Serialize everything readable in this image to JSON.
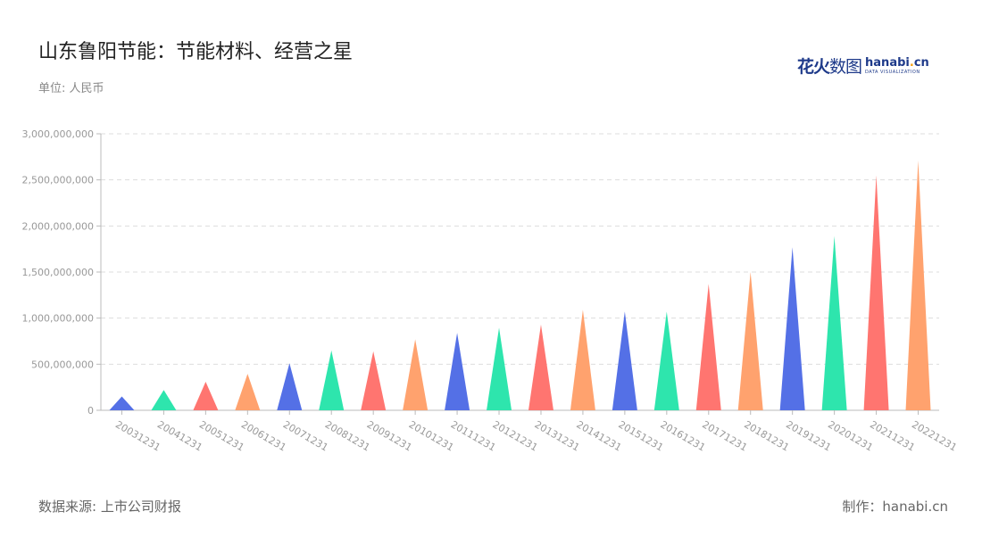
{
  "title": "山东鲁阳节能：节能材料、经营之星",
  "unit": "单位: 人民币",
  "logo": {
    "cn": "花火",
    "cn_thin": "数图",
    "en_main": "hanabi",
    "en_dot": ".",
    "en_tld": "cn",
    "en_sub": "DATA VISUALIZATION"
  },
  "source": "数据来源: 上市公司财报",
  "credit": "制作：hanabi.cn",
  "colors": {
    "palette": [
      "#5470e6",
      "#2ee5ad",
      "#ff7570",
      "#ffa26e"
    ],
    "grid": "#dddddd",
    "axis": "#bbbbbb",
    "tick": "#999999"
  },
  "chart_data": {
    "type": "bar",
    "bar_shape": "triangle",
    "categories": [
      "20031231",
      "20041231",
      "20051231",
      "20061231",
      "20071231",
      "20081231",
      "20091231",
      "20101231",
      "20111231",
      "20121231",
      "20131231",
      "20141231",
      "20151231",
      "20161231",
      "20171231",
      "20181231",
      "20191231",
      "20201231",
      "20211231",
      "20221231"
    ],
    "values": [
      150000000,
      220000000,
      310000000,
      395000000,
      510000000,
      650000000,
      640000000,
      770000000,
      840000000,
      895000000,
      930000000,
      1090000000,
      1070000000,
      1070000000,
      1370000000,
      1500000000,
      1770000000,
      1890000000,
      2550000000,
      2710000000
    ],
    "y_ticks": [
      "0",
      "500,000,000",
      "1,000,000,000",
      "1,500,000,000",
      "2,000,000,000",
      "2,500,000,000",
      "3,000,000,000"
    ],
    "ylim": [
      0,
      3000000000
    ],
    "grid": true
  }
}
